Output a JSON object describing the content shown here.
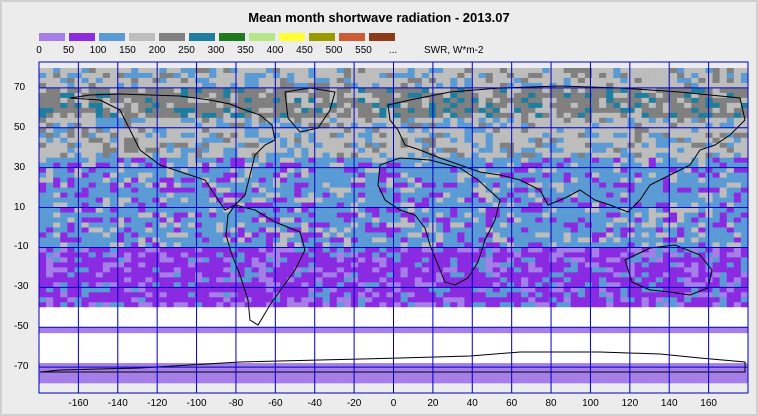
{
  "title": "Mean month shortwave radiation - 2013.07",
  "unit": "SWR, W*m-2",
  "legend": {
    "labels": [
      "0",
      "50",
      "100",
      "150",
      "200",
      "250",
      "300",
      "350",
      "400",
      "450",
      "500",
      "550",
      "..."
    ],
    "colors": [
      "#a57ee8",
      "#8a2be2",
      "#5b9bd5",
      "#bdbdbd",
      "#808080",
      "#1f7ea0",
      "#1f7a1f",
      "#b5e68a",
      "#ffff33",
      "#999900",
      "#cc5c33",
      "#8b3a1a"
    ]
  },
  "map": {
    "projection": "equirectangular",
    "lon_ticks": [
      -160,
      -140,
      -120,
      -100,
      -80,
      -60,
      -40,
      -20,
      0,
      20,
      40,
      60,
      80,
      100,
      120,
      140,
      160
    ],
    "lat_ticks": [
      70,
      50,
      30,
      10,
      -10,
      -30,
      -50,
      -70
    ],
    "grid_color": "#0000c0",
    "coastline_color": "#000000",
    "bands": [
      {
        "lat_from": 80,
        "lat_to": 70,
        "class": "150-200"
      },
      {
        "lat_from": 70,
        "lat_to": 55,
        "class": "200-250"
      },
      {
        "lat_from": 55,
        "lat_to": 35,
        "class": "150-200"
      },
      {
        "lat_from": 35,
        "lat_to": 15,
        "class": "100-150"
      },
      {
        "lat_from": 15,
        "lat_to": -10,
        "class": "100-150"
      },
      {
        "lat_from": -10,
        "lat_to": -40,
        "class": "50-100"
      },
      {
        "lat_from": -40,
        "lat_to": -50,
        "class": "no data"
      },
      {
        "lat_from": -50,
        "lat_to": -53,
        "class": "0-50"
      },
      {
        "lat_from": -53,
        "lat_to": -68,
        "class": "no data"
      },
      {
        "lat_from": -68,
        "lat_to": -78,
        "class": "0-50"
      }
    ]
  }
}
